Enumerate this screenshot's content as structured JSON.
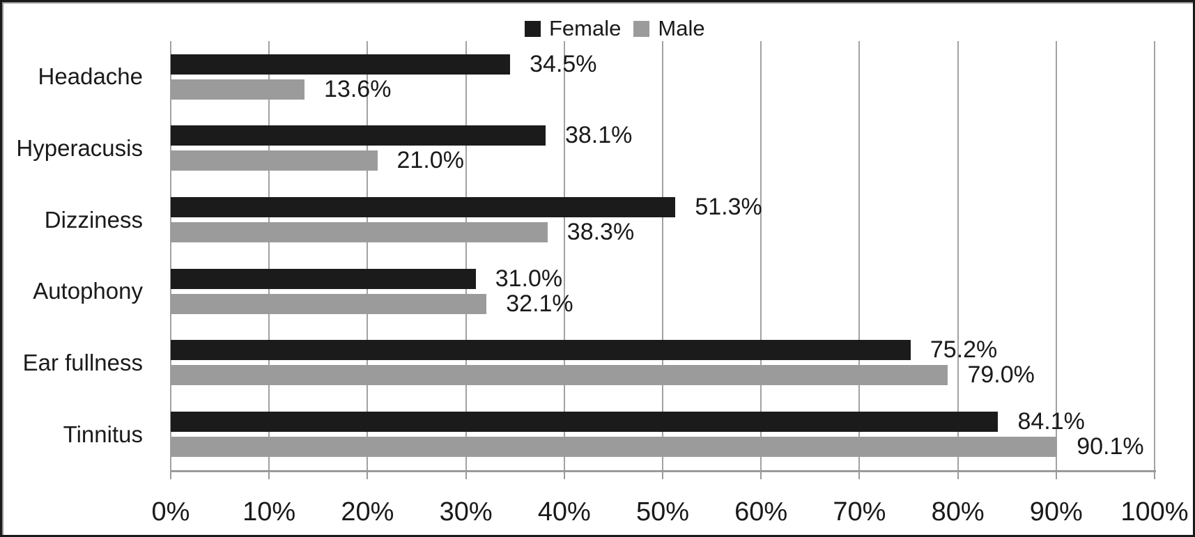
{
  "chart_data": {
    "type": "bar",
    "orientation": "horizontal",
    "title": "",
    "categories": [
      "Headache",
      "Hyperacusis",
      "Dizziness",
      "Autophony",
      "Ear fullness",
      "Tinnitus"
    ],
    "series": [
      {
        "name": "Female",
        "color": "#1b1b1b",
        "values": [
          34.5,
          38.1,
          51.3,
          31.0,
          75.2,
          84.1
        ],
        "labels": [
          "34.5%",
          "38.1%",
          "51.3%",
          "31.0%",
          "75.2%",
          "84.1%"
        ]
      },
      {
        "name": "Male",
        "color": "#9b9b9b",
        "values": [
          13.6,
          21.0,
          38.3,
          32.1,
          79.0,
          90.1
        ],
        "labels": [
          "13.6%",
          "21.0%",
          "38.3%",
          "32.1%",
          "79.0%",
          "90.1%"
        ]
      }
    ],
    "x_axis": {
      "min": 0,
      "max": 100,
      "tick_step": 10,
      "tick_labels": [
        "0%",
        "10%",
        "20%",
        "30%",
        "40%",
        "50%",
        "60%",
        "70%",
        "80%",
        "90%",
        "100%"
      ]
    },
    "legend": {
      "position": "top-center",
      "items": [
        "Female",
        "Male"
      ]
    },
    "grid": "vertical-on"
  },
  "colors": {
    "bar_female": "#1b1b1b",
    "bar_male": "#9b9b9b",
    "gridline": "#a2a2a2",
    "axis_line": "#9a9a9a",
    "text": "#1a1a1a",
    "background": "#ffffff",
    "frame_border": "#1a1a1a"
  }
}
